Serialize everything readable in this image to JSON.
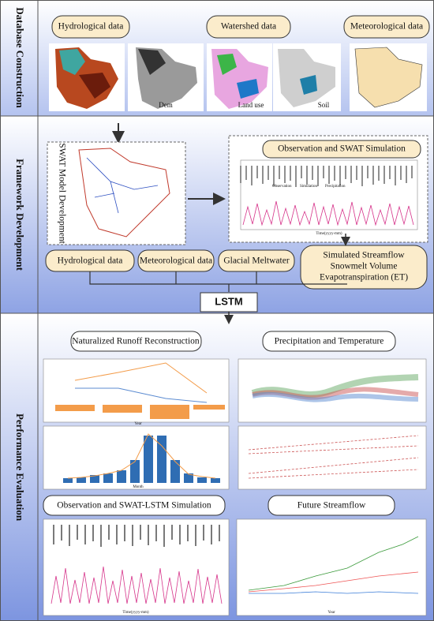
{
  "sections": [
    {
      "title": "Database Construction"
    },
    {
      "title": "Framework Development"
    },
    {
      "title": "Performance Evaluation"
    }
  ],
  "database": {
    "labels": [
      "Hydrological data",
      "Watershed data",
      "Meteorological data"
    ],
    "map_captions": [
      "Dem",
      "Land use",
      "Soil"
    ]
  },
  "framework": {
    "swat_label": "SWAT Model Development",
    "sim_title": "Observation and SWAT Simulation",
    "sim_legend": [
      "Observation",
      "Simulation",
      "Precipitation"
    ],
    "sim_x_label": "Time(yyyy-mm)",
    "inputs": [
      "Hydrological data",
      "Meteorological data",
      "Glacial Meltwater"
    ],
    "outputs": [
      "Simulated Streamflow",
      "Snowmelt Volume",
      "Evapotranspiration (ET)"
    ],
    "model": "LSTM"
  },
  "evaluation": {
    "panels": [
      {
        "title": "Naturalized Runoff Reconstruction",
        "x_labels": [
          "Year",
          "Month"
        ]
      },
      {
        "title": "Precipitation and Temperature"
      },
      {
        "title": "Observation and SWAT-LSTM Simulation",
        "x_label": "Time(yyyy-mm)"
      },
      {
        "title": "Future Streamflow",
        "x_label": "Year"
      }
    ]
  }
}
